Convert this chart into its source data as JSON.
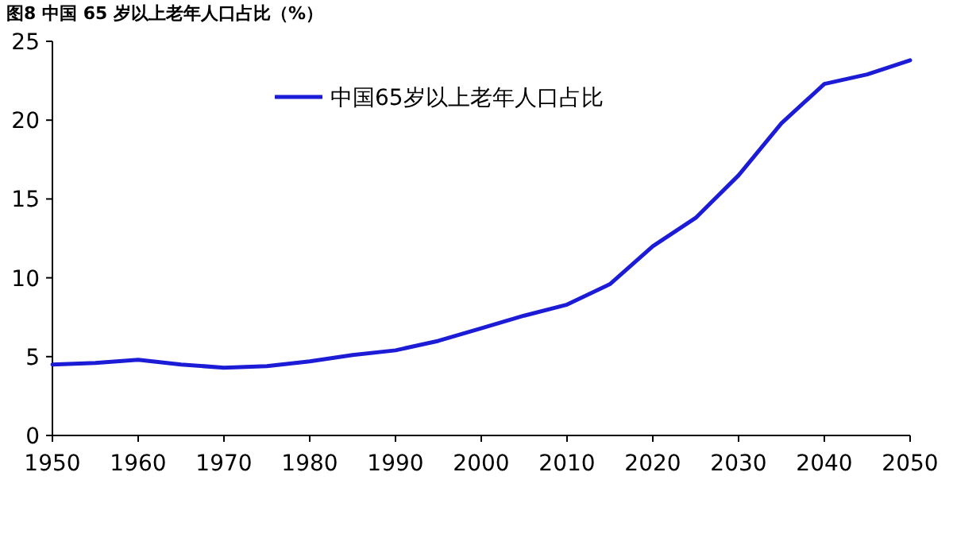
{
  "chart_data": {
    "type": "line",
    "title": "图8  中国 65 岁以上老年人口占比（%）",
    "x": [
      1950,
      1955,
      1960,
      1965,
      1970,
      1975,
      1980,
      1985,
      1990,
      1995,
      2000,
      2005,
      2010,
      2015,
      2020,
      2025,
      2030,
      2035,
      2040,
      2045,
      2050
    ],
    "series": [
      {
        "name": "中国65岁以上老年人口占比",
        "color": "#1c1cd6",
        "values": [
          4.5,
          4.6,
          4.8,
          4.5,
          4.3,
          4.4,
          4.7,
          5.1,
          5.4,
          6.0,
          6.8,
          7.6,
          8.3,
          9.6,
          12.0,
          13.8,
          16.5,
          19.8,
          22.3,
          22.9,
          23.8
        ]
      }
    ],
    "xlim": [
      1950,
      2050
    ],
    "xticks": [
      1950,
      1960,
      1970,
      1980,
      1990,
      2000,
      2010,
      2020,
      2030,
      2040,
      2050
    ],
    "ylim": [
      0,
      25
    ],
    "yticks": [
      0,
      5,
      10,
      15,
      20,
      25
    ],
    "grid": false,
    "legend": "top left",
    "marker": "none",
    "line_style": "solid"
  }
}
